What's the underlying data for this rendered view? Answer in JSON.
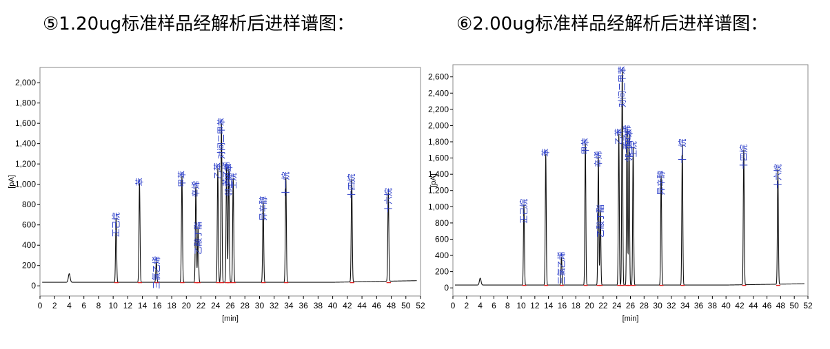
{
  "headings": [
    "⑤1.20ug标准样品经解析后进样谱图：",
    "⑥2.00ug标准样品经解析后进样谱图："
  ],
  "chart_data": [
    {
      "type": "line",
      "title": "⑤1.20ug标准样品经解析后进样谱图：",
      "xlabel": "[min]",
      "ylabel": "[pA]",
      "xlim": [
        0,
        52
      ],
      "ylim": [
        -100,
        2150
      ],
      "xticks": [
        0,
        2,
        4,
        6,
        8,
        10,
        12,
        14,
        16,
        18,
        20,
        22,
        24,
        26,
        28,
        30,
        32,
        34,
        36,
        38,
        40,
        42,
        44,
        46,
        48,
        50,
        52
      ],
      "yticks": [
        0,
        200,
        400,
        600,
        800,
        1000,
        1200,
        1400,
        1600,
        1800,
        2000
      ],
      "ytick_labels": [
        "0",
        "200",
        "400",
        "600",
        "800",
        "1,000",
        "1,200",
        "1,400",
        "1,600",
        "1,800",
        "2,000"
      ],
      "baseline": 35,
      "peaks": [
        {
          "x": 4.0,
          "y": 120,
          "label": ""
        },
        {
          "x": 10.4,
          "y": 670,
          "label": "正己烷"
        },
        {
          "x": 13.6,
          "y": 1010,
          "label": "苯"
        },
        {
          "x": 15.9,
          "y": 240,
          "label": "三氯乙烯"
        },
        {
          "x": 19.4,
          "y": 1080,
          "label": "甲苯"
        },
        {
          "x": 21.3,
          "y": 980,
          "label": "辛烯"
        },
        {
          "x": 21.6,
          "y": 580,
          "label": "乙酸丁酯"
        },
        {
          "x": 24.3,
          "y": 1160,
          "label": "乙苯"
        },
        {
          "x": 24.8,
          "y": 1600,
          "label": "对间二甲苯"
        },
        {
          "x": 25.5,
          "y": 1170,
          "label": "苯乙烯"
        },
        {
          "x": 25.8,
          "y": 1150,
          "label": "邻二甲苯"
        },
        {
          "x": 26.4,
          "y": 1060,
          "label": "壬烷"
        },
        {
          "x": 30.5,
          "y": 830,
          "label": "异辛醇"
        },
        {
          "x": 33.6,
          "y": 1070,
          "label": "十一烷"
        },
        {
          "x": 42.6,
          "y": 1050,
          "label": "十四烷"
        },
        {
          "x": 47.6,
          "y": 910,
          "label": "十六烷"
        }
      ]
    },
    {
      "type": "line",
      "title": "⑥2.00ug标准样品经解析后进样谱图：",
      "xlabel": "[min]",
      "ylabel": "[pA]",
      "xlim": [
        0,
        52
      ],
      "ylim": [
        -100,
        2750
      ],
      "xticks": [
        0,
        2,
        4,
        6,
        8,
        10,
        12,
        14,
        16,
        18,
        20,
        22,
        24,
        26,
        28,
        30,
        32,
        34,
        36,
        38,
        40,
        42,
        44,
        46,
        48,
        50,
        52
      ],
      "yticks": [
        0,
        200,
        400,
        600,
        800,
        1000,
        1200,
        1400,
        1600,
        1800,
        2000,
        2200,
        2400,
        2600
      ],
      "ytick_labels": [
        "0",
        "200",
        "400",
        "600",
        "800",
        "1,000",
        "1,200",
        "1,400",
        "1,600",
        "1,800",
        "2,000",
        "2,200",
        "2,400",
        "2,600"
      ],
      "baseline": 35,
      "peaks": [
        {
          "x": 4.0,
          "y": 120,
          "label": ""
        },
        {
          "x": 10.4,
          "y": 1030,
          "label": "正己烷"
        },
        {
          "x": 13.6,
          "y": 1650,
          "label": "苯"
        },
        {
          "x": 15.9,
          "y": 380,
          "label": "三氯乙烯"
        },
        {
          "x": 19.4,
          "y": 1780,
          "label": "甲苯"
        },
        {
          "x": 21.3,
          "y": 1620,
          "label": "辛烯"
        },
        {
          "x": 21.6,
          "y": 960,
          "label": "乙酸丁酯"
        },
        {
          "x": 24.3,
          "y": 1900,
          "label": "乙苯"
        },
        {
          "x": 24.8,
          "y": 2700,
          "label": "对间二甲苯"
        },
        {
          "x": 25.5,
          "y": 1940,
          "label": "苯乙烯"
        },
        {
          "x": 25.8,
          "y": 1890,
          "label": "邻二甲苯"
        },
        {
          "x": 26.4,
          "y": 1740,
          "label": "壬烷"
        },
        {
          "x": 30.5,
          "y": 1380,
          "label": "异辛醇"
        },
        {
          "x": 33.6,
          "y": 1770,
          "label": "十一烷"
        },
        {
          "x": 42.6,
          "y": 1700,
          "label": "十四烷"
        },
        {
          "x": 47.6,
          "y": 1460,
          "label": "十六烷"
        }
      ]
    }
  ]
}
